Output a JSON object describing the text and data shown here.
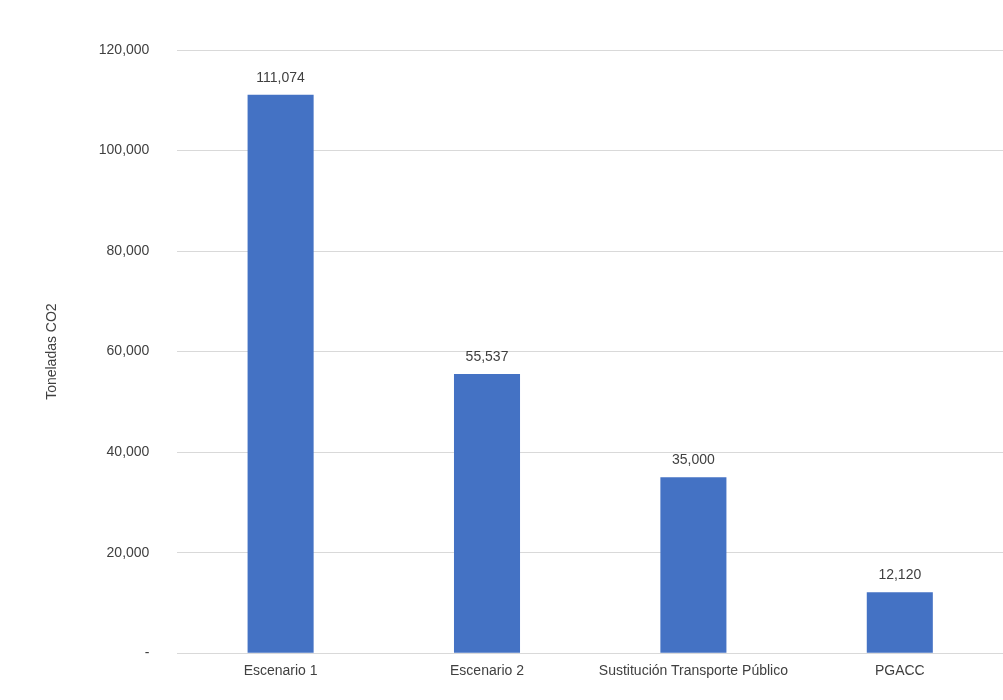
{
  "chart_data": {
    "type": "bar",
    "ylabel": "Toneladas CO2",
    "categories": [
      "Escenario 1",
      "Escenario 2",
      "Sustitución Transporte Público",
      "PGACC"
    ],
    "values": [
      111074,
      55537,
      35000,
      12120
    ],
    "value_labels": [
      "111,074",
      "55,537",
      "35,000",
      "12,120"
    ],
    "color": "#4472c4",
    "ylim": [
      0,
      120000
    ],
    "yticks": [
      {
        "value": 0,
        "label": "-"
      },
      {
        "value": 20000,
        "label": "20,000"
      },
      {
        "value": 40000,
        "label": "40,000"
      },
      {
        "value": 60000,
        "label": "60,000"
      },
      {
        "value": 80000,
        "label": "80,000"
      },
      {
        "value": 100000,
        "label": "100,000"
      },
      {
        "value": 120000,
        "label": "120,000"
      }
    ],
    "grid": "y",
    "legend": false
  }
}
